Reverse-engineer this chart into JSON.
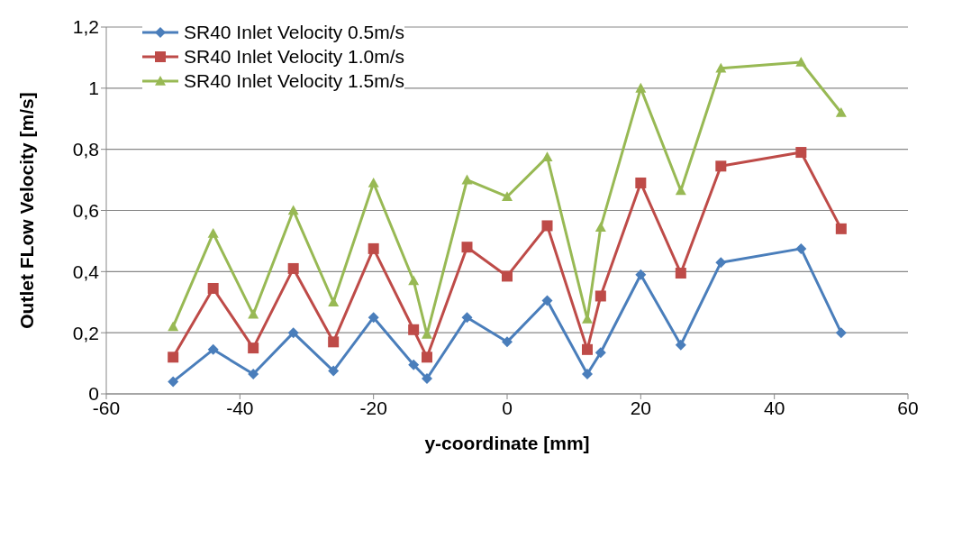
{
  "chart_data": {
    "type": "line",
    "xlabel": "y-coordinate [mm]",
    "ylabel": "Outlet FLow Velocity [m/s]",
    "x": [
      -50,
      -44,
      -38,
      -32,
      -26,
      -20,
      -14,
      -12,
      -6,
      0,
      6,
      12,
      14,
      20,
      26,
      32,
      44,
      50
    ],
    "series": [
      {
        "name": "SR40 Inlet Velocity 0.5m/s",
        "color": "#4a7ebb",
        "marker": "diamond",
        "values": [
          0.04,
          0.145,
          0.065,
          0.2,
          0.075,
          0.25,
          0.095,
          0.05,
          0.25,
          0.17,
          0.305,
          0.065,
          0.135,
          0.39,
          0.16,
          0.43,
          0.475,
          0.2
        ]
      },
      {
        "name": "SR40 Inlet Velocity 1.0m/s",
        "color": "#be4b48",
        "marker": "square",
        "values": [
          0.12,
          0.345,
          0.15,
          0.41,
          0.17,
          0.475,
          0.21,
          0.12,
          0.48,
          0.385,
          0.55,
          0.145,
          0.32,
          0.69,
          0.395,
          0.745,
          0.79,
          0.54
        ]
      },
      {
        "name": "SR40 Inlet Velocity 1.5m/s",
        "color": "#98b954",
        "marker": "triangle",
        "values": [
          0.22,
          0.525,
          0.26,
          0.6,
          0.3,
          0.69,
          0.37,
          0.195,
          0.7,
          0.645,
          0.775,
          0.245,
          0.545,
          1.0,
          0.665,
          1.065,
          1.085,
          0.92
        ]
      }
    ],
    "xlim": [
      -60,
      60
    ],
    "xticks": [
      -60,
      -40,
      -20,
      0,
      20,
      40,
      60
    ],
    "ylim": [
      0,
      1.2
    ],
    "yticks": [
      0,
      {
        "value": 0.2,
        "label": "0,2"
      },
      {
        "value": 0.4,
        "label": "0,4"
      },
      {
        "value": 0.6,
        "label": "0,6"
      },
      {
        "value": 0.8,
        "label": "0,8"
      },
      1,
      {
        "value": 1.2,
        "label": "1,2"
      }
    ],
    "grid": "y",
    "legend": "top left",
    "line_style": "solid"
  }
}
